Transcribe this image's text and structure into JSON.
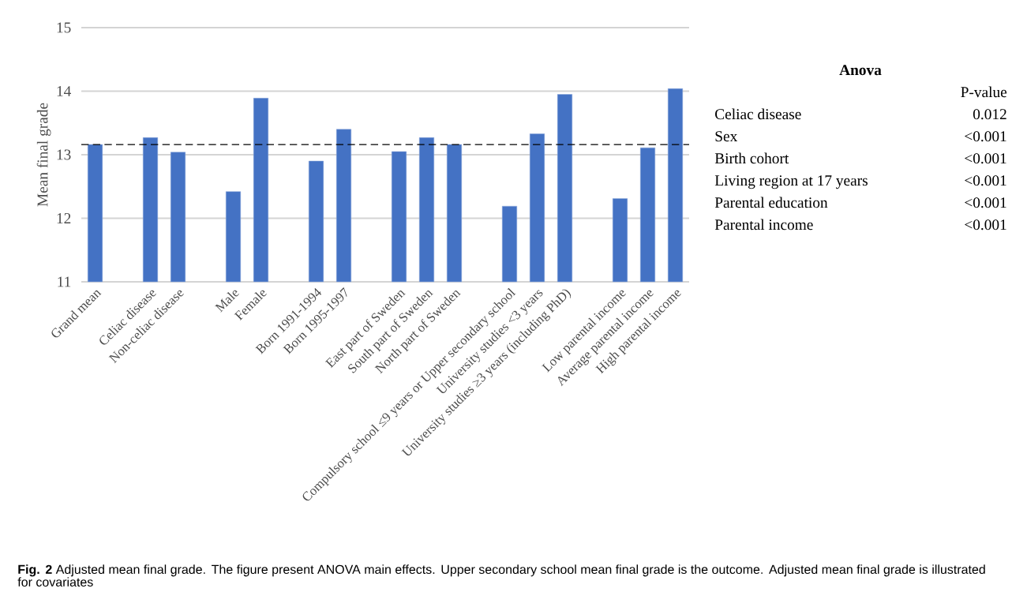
{
  "chart_data": {
    "type": "bar",
    "ylabel": "Mean final grade",
    "categories": [
      "Grand mean",
      null,
      "Celiac disease",
      "Non-celiac disease",
      null,
      "Male",
      "Female",
      null,
      "Born 1991-1994",
      "Born 1995-1997",
      null,
      "East part of Sweden",
      "South part of Sweden",
      "North part of Sweden",
      null,
      "Compulsory school ≤9 years or Upper secondary school",
      "University studies <3 years",
      "University studies ≥3 years (including PhD)",
      null,
      "Low parental income",
      "Average parental income",
      "High parental income"
    ],
    "values": [
      13.16,
      null,
      13.27,
      13.04,
      null,
      12.42,
      13.89,
      null,
      12.9,
      13.4,
      null,
      13.05,
      13.27,
      13.16,
      null,
      12.19,
      13.33,
      13.95,
      null,
      12.31,
      13.11,
      14.04
    ],
    "color": "#4472c4",
    "ylim": [
      11,
      15
    ],
    "yticks": [
      11,
      12,
      13,
      14,
      15
    ],
    "grid": "y",
    "ref_lines": [
      {
        "axis": "y",
        "value": 13.16,
        "color": "#000000",
        "line_style": "dashed"
      }
    ],
    "annotations": [
      "Anova",
      "P-value",
      "Celiac disease",
      "0.012",
      "Sex",
      "<0.001",
      "Birth cohort",
      "<0.001",
      "Living region at 17 years",
      "<0.001",
      "Parental education",
      "<0.001",
      "Parental income",
      "<0.001",
      "**Fig. 2** Adjusted mean final grade. The figure present ANOVA main effects. Upper secondary school mean final grade is the outcome. Adjusted mean final grade is illustrated for covariates"
    ]
  }
}
